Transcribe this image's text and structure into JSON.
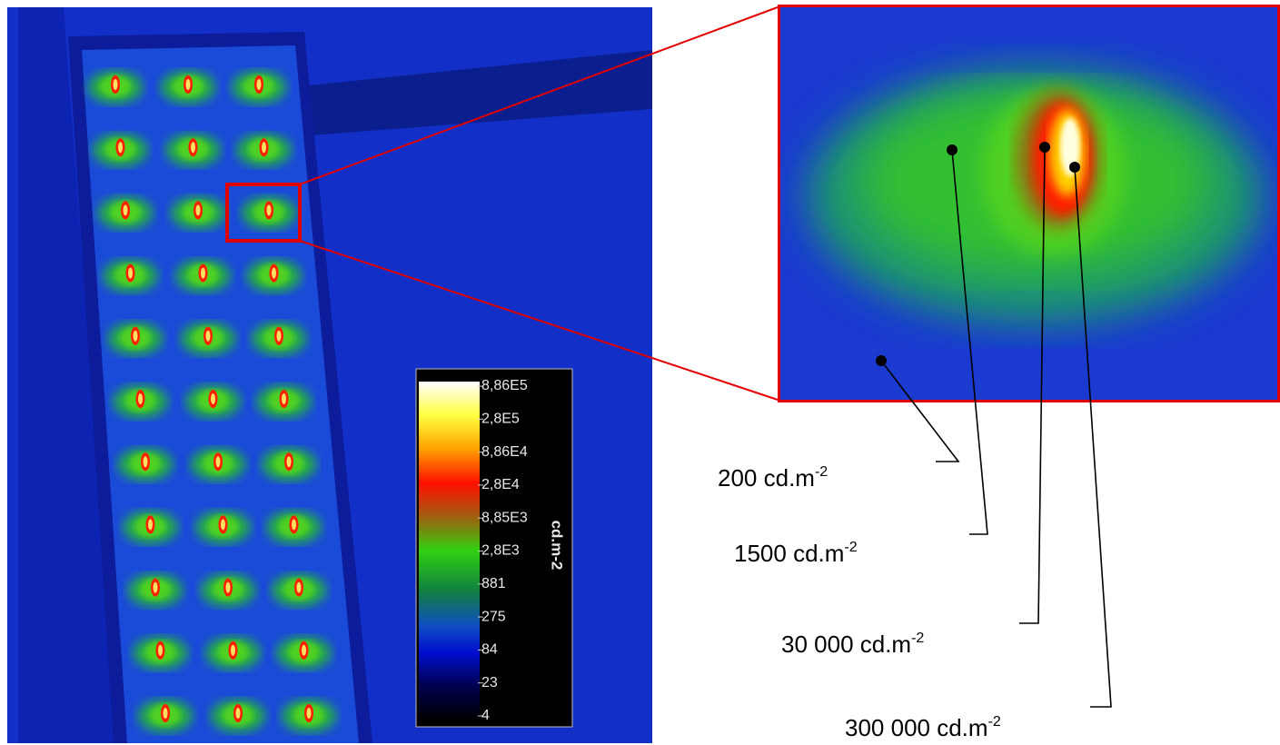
{
  "colorbar": {
    "ticks": [
      "8,86E5",
      "2,8E5",
      "8,86E4",
      "2,8E4",
      "8,85E3",
      "2,8E3",
      "881",
      "275",
      "84",
      "23",
      "4"
    ],
    "unit": "cd.m-2"
  },
  "annotations": [
    {
      "text": "200 cd.m",
      "superscript": "-2"
    },
    {
      "text": "1500 cd.m",
      "superscript": "-2"
    },
    {
      "text": "30 000 cd.m",
      "superscript": "-2"
    },
    {
      "text": "300 000 cd.m",
      "superscript": "-2"
    }
  ]
}
